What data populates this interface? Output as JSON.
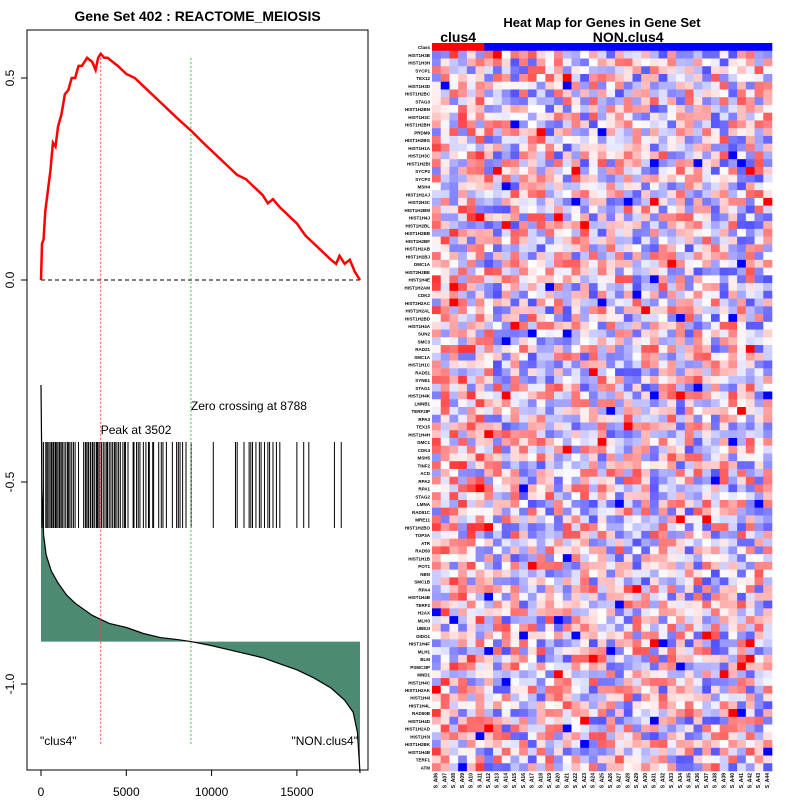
{
  "chart_data": [
    {
      "type": "line",
      "title": "Gene Set  402 : REACTOME_MEIOSIS",
      "x_ticks": [
        0,
        5000,
        10000,
        15000
      ],
      "y_ticks": [
        0.5,
        0.0,
        -0.5,
        -1.0
      ],
      "y_tick_labels": [
        "0.5",
        "0.0",
        "-0.5",
        "-1.0"
      ],
      "xlim": [
        0,
        18700
      ],
      "ylim": [
        -1.2,
        0.6
      ],
      "peak_label": "Peak at 3502",
      "peak_x": 3502,
      "zero_crossing_label": "Zero crossing at 8788",
      "zero_crossing_x": 8788,
      "left_class_label": "\"clus4\"",
      "right_class_label": "\"NON.clus4\"",
      "enrichment_curve": {
        "color": "#ff0000",
        "points": [
          [
            0,
            0.0
          ],
          [
            60,
            0.09
          ],
          [
            150,
            0.1
          ],
          [
            250,
            0.17
          ],
          [
            400,
            0.22
          ],
          [
            550,
            0.27
          ],
          [
            700,
            0.34
          ],
          [
            850,
            0.33
          ],
          [
            1000,
            0.38
          ],
          [
            1200,
            0.41
          ],
          [
            1400,
            0.46
          ],
          [
            1600,
            0.47
          ],
          [
            1800,
            0.5
          ],
          [
            2000,
            0.5
          ],
          [
            2200,
            0.53
          ],
          [
            2400,
            0.53
          ],
          [
            2700,
            0.55
          ],
          [
            3000,
            0.54
          ],
          [
            3200,
            0.52
          ],
          [
            3350,
            0.55
          ],
          [
            3502,
            0.56
          ],
          [
            3700,
            0.55
          ],
          [
            3900,
            0.55
          ],
          [
            4200,
            0.54
          ],
          [
            4500,
            0.53
          ],
          [
            5000,
            0.51
          ],
          [
            5500,
            0.5
          ],
          [
            6000,
            0.48
          ],
          [
            6500,
            0.46
          ],
          [
            7000,
            0.44
          ],
          [
            7500,
            0.42
          ],
          [
            8000,
            0.4
          ],
          [
            8788,
            0.37
          ],
          [
            9500,
            0.34
          ],
          [
            10000,
            0.32
          ],
          [
            10500,
            0.3
          ],
          [
            11000,
            0.28
          ],
          [
            11500,
            0.26
          ],
          [
            12000,
            0.25
          ],
          [
            12500,
            0.23
          ],
          [
            13000,
            0.21
          ],
          [
            13300,
            0.19
          ],
          [
            13600,
            0.2
          ],
          [
            14000,
            0.18
          ],
          [
            14500,
            0.16
          ],
          [
            15000,
            0.14
          ],
          [
            15500,
            0.11
          ],
          [
            16000,
            0.09
          ],
          [
            16500,
            0.07
          ],
          [
            17000,
            0.05
          ],
          [
            17300,
            0.04
          ],
          [
            17500,
            0.06
          ],
          [
            17800,
            0.04
          ],
          [
            18100,
            0.05
          ],
          [
            18400,
            0.02
          ],
          [
            18700,
            0.0
          ]
        ]
      },
      "gene_hits": [
        50,
        150,
        280,
        350,
        420,
        520,
        600,
        650,
        730,
        820,
        880,
        950,
        1050,
        1100,
        1180,
        1250,
        1350,
        1450,
        1550,
        1620,
        1700,
        1800,
        1900,
        2000,
        2200,
        2500,
        2600,
        2650,
        2750,
        2800,
        2900,
        3000,
        3050,
        3150,
        3250,
        3300,
        3350,
        3450,
        3550,
        3650,
        3750,
        3850,
        3900,
        4000,
        4100,
        4200,
        4300,
        4350,
        4450,
        4550,
        4650,
        4800,
        4900,
        4950,
        5100,
        5400,
        5450,
        5600,
        5700,
        5800,
        6000,
        6150,
        6300,
        6350,
        6550,
        6600,
        6900,
        7050,
        7150,
        7350,
        7700,
        7950,
        8050,
        8150,
        8300,
        8500,
        8800,
        10100,
        11400,
        11500,
        11900,
        12200,
        12300,
        12400,
        12600,
        12800,
        12900,
        13100,
        13300,
        13400,
        13600,
        13800,
        14000,
        15000,
        15400,
        15700,
        17200,
        17600
      ],
      "ranked_metric": {
        "fill_color": "#4c8a72",
        "points": [
          [
            0,
            -0.26
          ],
          [
            60,
            -0.52
          ],
          [
            150,
            -0.63
          ],
          [
            300,
            -0.68
          ],
          [
            600,
            -0.72
          ],
          [
            1000,
            -0.75
          ],
          [
            1500,
            -0.78
          ],
          [
            2000,
            -0.8
          ],
          [
            3000,
            -0.83
          ],
          [
            4000,
            -0.85
          ],
          [
            5000,
            -0.86
          ],
          [
            6000,
            -0.875
          ],
          [
            7000,
            -0.885
          ],
          [
            8000,
            -0.89
          ],
          [
            8788,
            -0.895
          ],
          [
            10000,
            -0.905
          ],
          [
            11000,
            -0.915
          ],
          [
            12000,
            -0.925
          ],
          [
            13000,
            -0.935
          ],
          [
            14000,
            -0.95
          ],
          [
            15000,
            -0.965
          ],
          [
            16000,
            -0.985
          ],
          [
            17000,
            -1.01
          ],
          [
            17800,
            -1.04
          ],
          [
            18300,
            -1.07
          ],
          [
            18550,
            -1.12
          ],
          [
            18700,
            -1.22
          ]
        ],
        "baseline": -0.895
      }
    },
    {
      "type": "heatmap",
      "title": "Heat Map for Genes in Gene Set",
      "group_labels": [
        "clus4",
        "NON.clus4"
      ],
      "group_colors": [
        "#ff0000",
        "#0000ff"
      ],
      "group_sizes": [
        6,
        33
      ],
      "n_rows": 94,
      "n_cols": 39,
      "row_label_first": "Class",
      "row_labels": [
        "Class",
        "HIST1H3B",
        "HIST1H3H",
        "SYCP1",
        "TEX12",
        "HIST1H3D",
        "HIST1H2BC",
        "STAG3",
        "HIST1H2BN",
        "HIST1H3C",
        "HIST1H2BH",
        "PRDM9",
        "HIST1H2BG",
        "HIST1H1A",
        "HIST1H3C",
        "HIST1H2BI",
        "SYCP2",
        "SYCP3",
        "MSH4",
        "HIST1H2AJ",
        "HIST2H3C",
        "HIST1H2BM",
        "HIST1H4J",
        "HIST1H2BL",
        "HIST1H2BB",
        "HIST1H2BF",
        "HIST1H2AB",
        "HIST1H2BJ",
        "DMC1A",
        "HIST2H2BE",
        "HIST1H4E",
        "HIST1H2AM",
        "CDK2",
        "HIST2H2AC",
        "HIST1H2AL",
        "HIST1H2BD",
        "HIST1H4A",
        "SUN2",
        "SMC3",
        "RAD21",
        "SMC1A",
        "HIST1H1C",
        "RAD51",
        "SYNE1",
        "STAG1",
        "HIST1H4K",
        "LMNB1",
        "TERF2IP",
        "RPA3",
        "TEX15",
        "HIST1H4H",
        "DMC1",
        "CDK4",
        "MSH5",
        "TINF2",
        "ACD",
        "RPA2",
        "RPA1",
        "STAG2",
        "LMNA",
        "RAD51C",
        "MRE11",
        "HIST1H2BO",
        "TOP3A",
        "ATR",
        "RAD50",
        "HIST1H1B",
        "POT1",
        "NBN",
        "SMC1B",
        "RPA4",
        "HIST1H4B",
        "TERF2",
        "H2AX",
        "MLH3",
        "UBE2I",
        "DIDO1",
        "HIST1H4F",
        "MLH1",
        "BLM",
        "PSMC3IP",
        "MND1",
        "HIST1H4C",
        "HIST1H2AK",
        "HIST1H4I",
        "HIST1H4L",
        "RAD50B",
        "HIST1H4D",
        "HIST1H2AD",
        "HIST1H3I",
        "HIST1H2BK",
        "HIST1H4B",
        "TERF1",
        "ATM"
      ],
      "col_labels": [
        "S_A06",
        "S_A07",
        "S_A08",
        "S_A09",
        "S_A10",
        "S_A11",
        "S_A12",
        "S_A13",
        "S_A14",
        "S_A15",
        "S_A16",
        "S_A17",
        "S_A18",
        "S_A19",
        "S_A20",
        "S_A21",
        "S_A22",
        "S_A23",
        "S_A24",
        "S_A25",
        "S_A26",
        "S_A27",
        "S_A28",
        "S_A29",
        "S_A30",
        "S_A31",
        "S_A32",
        "S_A33",
        "S_A34",
        "S_A35",
        "S_A36",
        "S_A37",
        "S_A38",
        "S_A39",
        "S_A40",
        "S_A41",
        "S_A42",
        "S_A43",
        "S_A44"
      ],
      "color_low": "#0000ff",
      "color_mid": "#ffffff",
      "color_high": "#ff0000"
    }
  ]
}
